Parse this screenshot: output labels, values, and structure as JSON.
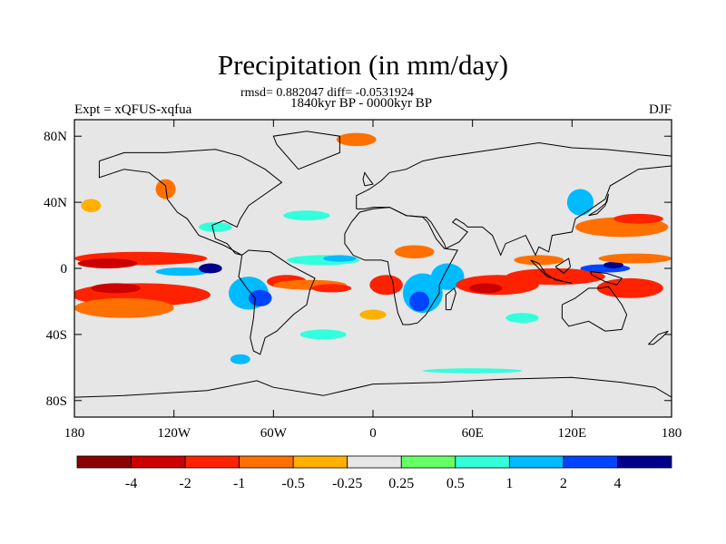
{
  "chart_title": "Precipitation (in mm/day)",
  "stats_line": "rmsd= 0.882047 diff= -0.0531924",
  "period_line": "1840kyr BP - 0000kyr BP",
  "left_label": "Expt = xQFUS-xqfua",
  "right_label": "DJF",
  "colors": {
    "background": "#e6e6e6",
    "coast": "#000000"
  },
  "chart_data": {
    "type": "heatmap",
    "title": "Precipitation (in mm/day)",
    "variable": "precipitation anomaly",
    "units": "mm/day",
    "season": "DJF",
    "projection": "cylindrical equidistant",
    "xlim": [
      -180,
      180
    ],
    "ylim": [
      -90,
      90
    ],
    "x_ticks": [
      {
        "value": -180,
        "label": "180"
      },
      {
        "value": -120,
        "label": "120W"
      },
      {
        "value": -60,
        "label": "60W"
      },
      {
        "value": 0,
        "label": "0"
      },
      {
        "value": 60,
        "label": "60E"
      },
      {
        "value": 120,
        "label": "120E"
      },
      {
        "value": 180,
        "label": "180"
      }
    ],
    "y_ticks": [
      {
        "value": 80,
        "label": "80N"
      },
      {
        "value": 40,
        "label": "40N"
      },
      {
        "value": 0,
        "label": "0"
      },
      {
        "value": -40,
        "label": "40S"
      },
      {
        "value": -80,
        "label": "80S"
      }
    ],
    "contour_levels": [
      "-4",
      "-2",
      "-1",
      "-0.5",
      "-0.25",
      "0.25",
      "0.5",
      "1",
      "2",
      "4"
    ],
    "color_scale": [
      "#8b0000",
      "#cc0000",
      "#ff2200",
      "#ff7000",
      "#ffb000",
      "#e6e6e6",
      "#66ff66",
      "#33ffdd",
      "#00bbff",
      "#0044ff",
      "#00008b"
    ],
    "anomaly_regions": [
      {
        "lon": -140,
        "lat": 6,
        "rx": 40,
        "ry": 4,
        "value": -2
      },
      {
        "lon": -160,
        "lat": 3,
        "rx": 18,
        "ry": 3,
        "value": -4
      },
      {
        "lon": -140,
        "lat": -16,
        "rx": 42,
        "ry": 7,
        "value": -2
      },
      {
        "lon": -150,
        "lat": -24,
        "rx": 30,
        "ry": 6,
        "value": -1
      },
      {
        "lon": -155,
        "lat": -12,
        "rx": 15,
        "ry": 3,
        "value": -4
      },
      {
        "lon": -115,
        "lat": -2,
        "rx": 16,
        "ry": 2.5,
        "value": 1
      },
      {
        "lon": -98,
        "lat": 0,
        "rx": 7,
        "ry": 3,
        "value": 4
      },
      {
        "lon": -75,
        "lat": -15,
        "rx": 12,
        "ry": 10,
        "value": 1
      },
      {
        "lon": -68,
        "lat": -18,
        "rx": 7,
        "ry": 5,
        "value": 2
      },
      {
        "lon": -52,
        "lat": -8,
        "rx": 12,
        "ry": 4,
        "value": -2
      },
      {
        "lon": -38,
        "lat": -10,
        "rx": 22,
        "ry": 3,
        "value": -1
      },
      {
        "lon": -25,
        "lat": -12,
        "rx": 12,
        "ry": 2.5,
        "value": -2
      },
      {
        "lon": -30,
        "lat": 5,
        "rx": 22,
        "ry": 3,
        "value": 0.5
      },
      {
        "lon": -20,
        "lat": 6,
        "rx": 10,
        "ry": 2,
        "value": 1
      },
      {
        "lon": 8,
        "lat": -10,
        "rx": 10,
        "ry": 6,
        "value": -2
      },
      {
        "lon": 30,
        "lat": -15,
        "rx": 12,
        "ry": 12,
        "value": 1
      },
      {
        "lon": 28,
        "lat": -20,
        "rx": 6,
        "ry": 6,
        "value": 2
      },
      {
        "lon": 25,
        "lat": 10,
        "rx": 12,
        "ry": 4,
        "value": -1
      },
      {
        "lon": 45,
        "lat": -5,
        "rx": 10,
        "ry": 8,
        "value": 1
      },
      {
        "lon": 75,
        "lat": -10,
        "rx": 25,
        "ry": 6,
        "value": -2
      },
      {
        "lon": 68,
        "lat": -12,
        "rx": 10,
        "ry": 3,
        "value": -4
      },
      {
        "lon": 110,
        "lat": -5,
        "rx": 30,
        "ry": 5,
        "value": -2
      },
      {
        "lon": 100,
        "lat": 5,
        "rx": 15,
        "ry": 3,
        "value": -1
      },
      {
        "lon": 140,
        "lat": 0,
        "rx": 15,
        "ry": 2.5,
        "value": 2
      },
      {
        "lon": 145,
        "lat": 2,
        "rx": 6,
        "ry": 2,
        "value": 4
      },
      {
        "lon": 155,
        "lat": -12,
        "rx": 20,
        "ry": 6,
        "value": -2
      },
      {
        "lon": 158,
        "lat": 6,
        "rx": 22,
        "ry": 3,
        "value": -1
      },
      {
        "lon": 150,
        "lat": 25,
        "rx": 28,
        "ry": 6,
        "value": -1
      },
      {
        "lon": 160,
        "lat": 30,
        "rx": 15,
        "ry": 3,
        "value": -2
      },
      {
        "lon": 125,
        "lat": 40,
        "rx": 8,
        "ry": 8,
        "value": 1
      },
      {
        "lon": -10,
        "lat": 78,
        "rx": 12,
        "ry": 4,
        "value": -1
      },
      {
        "lon": -170,
        "lat": 38,
        "rx": 6,
        "ry": 4,
        "value": -0.5
      },
      {
        "lon": -125,
        "lat": 48,
        "rx": 6,
        "ry": 6,
        "value": -1
      },
      {
        "lon": -95,
        "lat": 25,
        "rx": 10,
        "ry": 3,
        "value": 0.5
      },
      {
        "lon": -40,
        "lat": 32,
        "rx": 14,
        "ry": 3,
        "value": 0.5
      },
      {
        "lon": -30,
        "lat": -40,
        "rx": 14,
        "ry": 3,
        "value": 0.5
      },
      {
        "lon": 0,
        "lat": -28,
        "rx": 8,
        "ry": 3,
        "value": -0.5
      },
      {
        "lon": 60,
        "lat": -62,
        "rx": 30,
        "ry": 1.5,
        "value": 0.5
      },
      {
        "lon": -80,
        "lat": -55,
        "rx": 6,
        "ry": 3,
        "value": 1
      },
      {
        "lon": 90,
        "lat": -30,
        "rx": 10,
        "ry": 3,
        "value": 0.5
      }
    ]
  }
}
